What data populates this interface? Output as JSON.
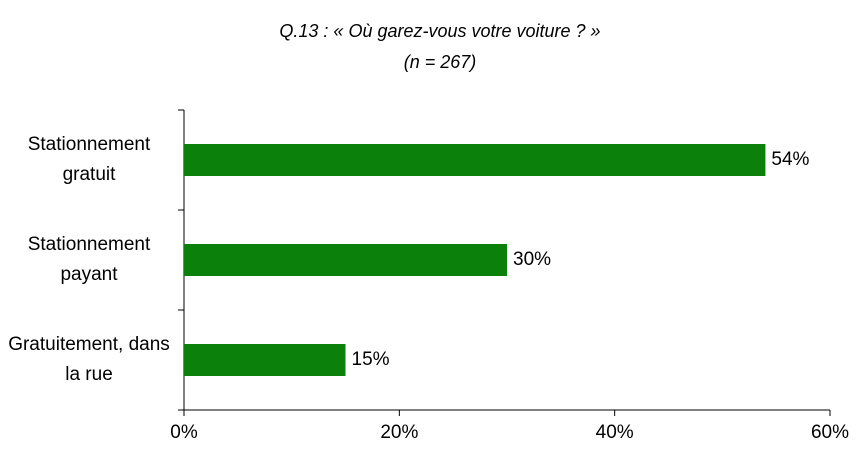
{
  "chart_data": {
    "type": "hbar",
    "title": "Q.13 : « Où garez-vous votre voiture ? »",
    "subtitle": "(n = 267)",
    "categories": [
      "Stationnement gratuit",
      "Stationnement payant",
      "Gratuitement, dans la rue"
    ],
    "values": [
      54,
      30,
      15
    ],
    "value_labels": [
      "54%",
      "30%",
      "15%"
    ],
    "color": "#0b800b",
    "xlim": [
      0,
      60
    ],
    "xticks": [
      {
        "value": 0,
        "label": "0%"
      },
      {
        "value": 20,
        "label": "20%"
      },
      {
        "value": 40,
        "label": "40%"
      },
      {
        "value": 60,
        "label": "60%"
      }
    ],
    "grid": false
  }
}
